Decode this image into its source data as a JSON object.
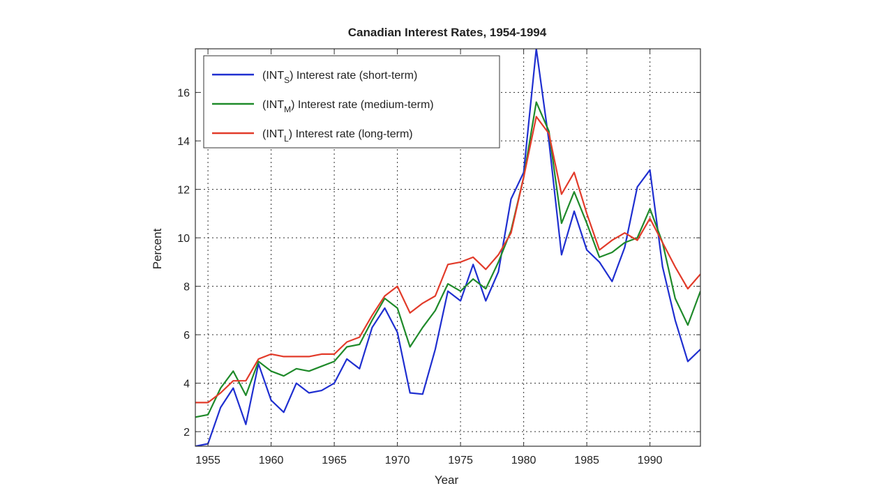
{
  "chart_data": {
    "type": "line",
    "title": "Canadian Interest Rates, 1954-1994",
    "xlabel": "Year",
    "ylabel": "Percent",
    "xlim": [
      1954,
      1994
    ],
    "ylim": [
      1.4,
      17.8
    ],
    "xticks": [
      1955,
      1960,
      1965,
      1970,
      1975,
      1980,
      1985,
      1990
    ],
    "yticks": [
      2,
      4,
      6,
      8,
      10,
      12,
      14,
      16
    ],
    "grid": true,
    "grid_style": "dotted",
    "legend_position": "top-left",
    "x": [
      1954,
      1955,
      1956,
      1957,
      1958,
      1959,
      1960,
      1961,
      1962,
      1963,
      1964,
      1965,
      1966,
      1967,
      1968,
      1969,
      1970,
      1971,
      1972,
      1973,
      1974,
      1975,
      1976,
      1977,
      1978,
      1979,
      1980,
      1981,
      1982,
      1983,
      1984,
      1985,
      1986,
      1987,
      1988,
      1989,
      1990,
      1991,
      1992,
      1993,
      1994
    ],
    "series": [
      {
        "name": "(INT_S) Interest rate (short-term)",
        "label_base": "(INT",
        "label_sub": "S",
        "label_rest": ") Interest rate (short-term)",
        "color": "#1f2fd0",
        "values": [
          1.4,
          1.5,
          3.0,
          3.8,
          2.3,
          4.8,
          3.3,
          2.8,
          4.0,
          3.6,
          3.7,
          4.0,
          5.0,
          4.6,
          6.3,
          7.1,
          6.1,
          3.6,
          3.55,
          5.4,
          7.8,
          7.4,
          8.9,
          7.4,
          8.6,
          11.6,
          12.7,
          17.8,
          14.0,
          9.3,
          11.1,
          9.5,
          9.0,
          8.2,
          9.6,
          12.1,
          12.8,
          8.8,
          6.6,
          4.9,
          5.4
        ]
      },
      {
        "name": "(INT_M) Interest rate (medium-term)",
        "label_base": "(INT",
        "label_sub": "M",
        "label_rest": ") Interest rate (medium-term)",
        "color": "#1f8a2a",
        "values": [
          2.6,
          2.7,
          3.8,
          4.5,
          3.5,
          4.9,
          4.5,
          4.3,
          4.6,
          4.5,
          4.7,
          4.9,
          5.5,
          5.6,
          6.6,
          7.5,
          7.1,
          5.5,
          6.3,
          7.0,
          8.1,
          7.8,
          8.3,
          7.9,
          9.0,
          10.3,
          12.5,
          15.6,
          14.4,
          10.6,
          11.9,
          10.6,
          9.2,
          9.4,
          9.8,
          10.0,
          11.2,
          9.8,
          7.5,
          6.4,
          7.8
        ]
      },
      {
        "name": "(INT_L) Interest rate (long-term)",
        "label_base": "(INT",
        "label_sub": "L",
        "label_rest": ") Interest rate (long-term)",
        "color": "#e23b2a",
        "values": [
          3.2,
          3.2,
          3.6,
          4.1,
          4.1,
          5.0,
          5.2,
          5.1,
          5.1,
          5.1,
          5.2,
          5.2,
          5.7,
          5.9,
          6.8,
          7.6,
          8.0,
          6.9,
          7.3,
          7.6,
          8.9,
          9.0,
          9.2,
          8.7,
          9.3,
          10.2,
          12.5,
          15.0,
          14.3,
          11.8,
          12.7,
          11.0,
          9.5,
          9.9,
          10.2,
          9.9,
          10.8,
          9.8,
          8.8,
          7.9,
          8.5
        ]
      }
    ]
  }
}
